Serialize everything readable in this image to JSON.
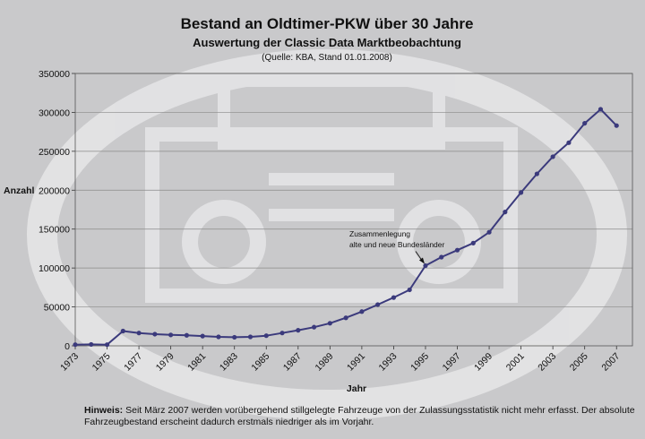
{
  "chart_data": {
    "type": "line",
    "title": "Bestand an Oldtimer-PKW über 30 Jahre",
    "subtitle": "Auswertung der Classic Data Marktbeobachtung",
    "source": "(Quelle: KBA, Stand 01.01.2008)",
    "xlabel": "Jahr",
    "ylabel": "Anzahl",
    "xlim": [
      1973,
      2008
    ],
    "ylim": [
      0,
      350000
    ],
    "y_ticks": [
      0,
      50000,
      100000,
      150000,
      200000,
      250000,
      300000,
      350000
    ],
    "x_ticks": [
      1973,
      1975,
      1977,
      1979,
      1981,
      1983,
      1985,
      1987,
      1989,
      1991,
      1993,
      1995,
      1997,
      1999,
      2001,
      2003,
      2005,
      2007
    ],
    "grid": "horizontal",
    "line_color": "#3b3a7c",
    "series": [
      {
        "x": [
          1973,
          1974,
          1975,
          1976,
          1977,
          1978,
          1979,
          1980,
          1981,
          1982,
          1983,
          1984,
          1985,
          1986,
          1987,
          1988,
          1989,
          1990,
          1991,
          1992,
          1993,
          1994,
          1995,
          1996,
          1997,
          1998,
          1999,
          2000,
          2001,
          2002,
          2003,
          2004,
          2005,
          2006,
          2007
        ],
        "values": [
          1500,
          1800,
          1500,
          19000,
          16500,
          15000,
          14000,
          13500,
          12500,
          11500,
          11000,
          11500,
          13000,
          16500,
          20000,
          24000,
          29000,
          36000,
          44000,
          53000,
          62000,
          72000,
          103000,
          114000,
          123000,
          132000,
          146000,
          172000,
          197000,
          221000,
          243000,
          261000,
          286000,
          304000,
          283000
        ]
      }
    ],
    "annotation": {
      "lines": [
        "Zusammenlegung",
        "alte und neue Bundesländer"
      ],
      "x": 1995,
      "y": 103000
    }
  },
  "note": {
    "label": "Hinweis:",
    "text": "Seit März 2007 werden vorübergehend stillgelegte Fahrzeuge von der Zulassungsstatistik nicht mehr erfasst. Der absolute Fahrzeugbestand erscheint dadurch erstmals niedriger als im Vorjahr."
  }
}
